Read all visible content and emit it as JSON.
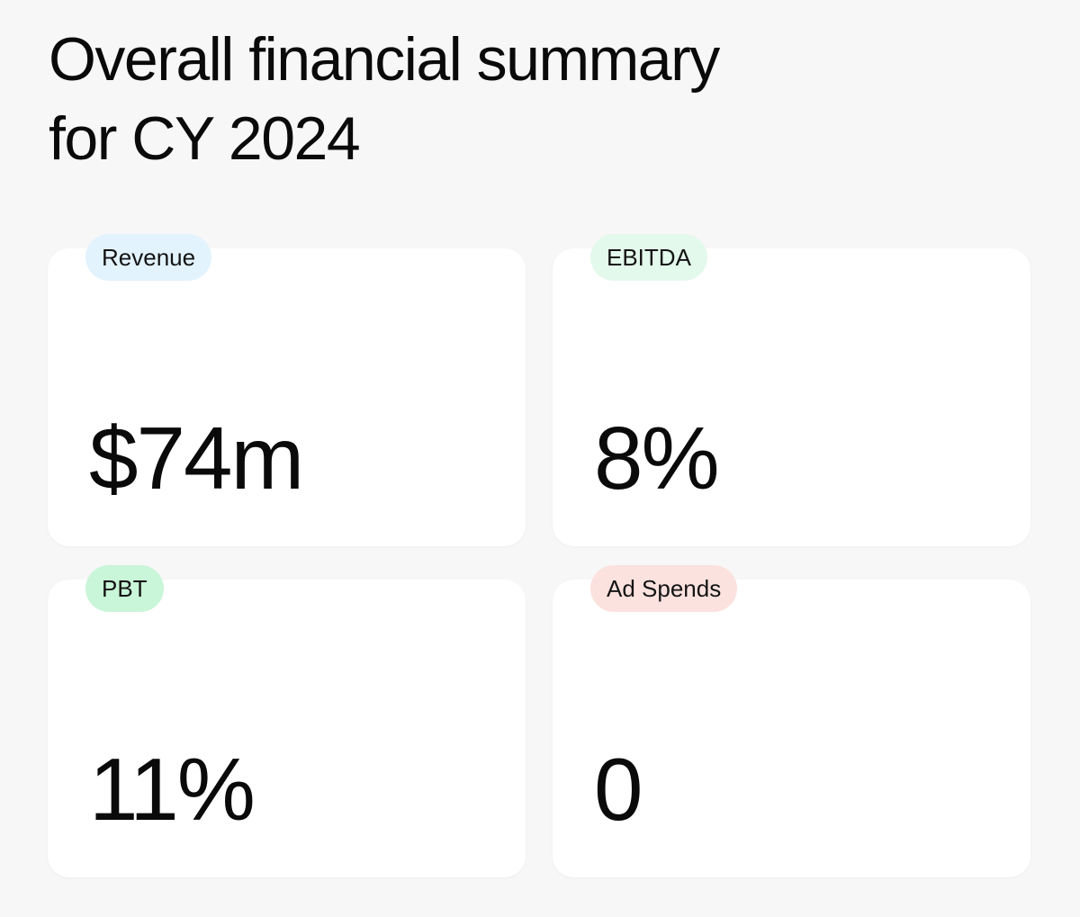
{
  "title": {
    "line1": "Overall financial summary",
    "line2": "for CY 2024"
  },
  "metrics": [
    {
      "label": "Revenue",
      "value": "$74m",
      "badge_color": "#e3f3fd"
    },
    {
      "label": "EBITDA",
      "value": "8%",
      "badge_color": "#e3f9ec"
    },
    {
      "label": "PBT",
      "value": "11%",
      "badge_color": "#c9f5d8"
    },
    {
      "label": "Ad Spends",
      "value": "0",
      "badge_color": "#fbe2df"
    }
  ]
}
